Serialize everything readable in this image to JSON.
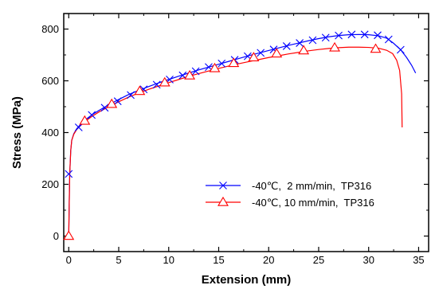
{
  "chart_data": {
    "type": "line",
    "xlabel": "Extension (mm)",
    "ylabel": "Stress (MPa)",
    "xlim": [
      -0.5,
      36
    ],
    "ylim": [
      -60,
      860
    ],
    "xticks": [
      0,
      5,
      10,
      15,
      20,
      25,
      30,
      35
    ],
    "yticks": [
      0,
      200,
      400,
      600,
      800
    ],
    "grid": false,
    "legend_position": "lower-right",
    "series": [
      {
        "name": "-40℃,  2 mm/min,  TP316",
        "color": "#0000ff",
        "marker": "x",
        "x": [
          0,
          0.05,
          0.1,
          0.2,
          0.3,
          0.5,
          0.8,
          1.2,
          1.7,
          2.3,
          3.0,
          4.0,
          5.0,
          6.0,
          7.0,
          8.0,
          9.0,
          10.0,
          11.0,
          12.0,
          13.0,
          14.0,
          15.0,
          16.0,
          17.0,
          18.0,
          19.0,
          20.0,
          21.0,
          22.0,
          23.0,
          24.0,
          25.0,
          26.0,
          27.0,
          28.0,
          29.0,
          30.0,
          31.0,
          31.8,
          32.5,
          33.2,
          33.8,
          34.3,
          34.7
        ],
        "y": [
          0,
          130,
          240,
          330,
          370,
          395,
          415,
          432,
          450,
          468,
          485,
          507,
          528,
          547,
          563,
          578,
          592,
          605,
          618,
          630,
          642,
          653,
          664,
          675,
          686,
          697,
          707,
          717,
          727,
          737,
          746,
          755,
          763,
          770,
          775,
          778,
          779,
          778,
          774,
          765,
          745,
          720,
          690,
          660,
          630
        ],
        "markers_x": [
          0,
          1.0,
          2.3,
          3.6,
          4.9,
          6.2,
          7.5,
          8.8,
          10.1,
          11.4,
          12.7,
          14.0,
          15.3,
          16.6,
          17.9,
          19.2,
          20.5,
          21.8,
          23.1,
          24.4,
          25.7,
          27.0,
          28.3,
          29.6,
          30.9,
          32.0,
          33.2
        ],
        "markers_y": [
          240,
          420,
          468,
          496,
          521,
          545,
          567,
          585,
          605,
          621,
          637,
          653,
          667,
          681,
          695,
          708,
          721,
          734,
          746,
          757,
          767,
          775,
          779,
          779,
          776,
          760,
          720
        ]
      },
      {
        "name": "-40℃, 10 mm/min,  TP316",
        "color": "#ff0000",
        "marker": "triangle",
        "x": [
          0,
          0.05,
          0.1,
          0.2,
          0.3,
          0.5,
          0.8,
          1.2,
          1.7,
          2.3,
          3.0,
          4.0,
          5.0,
          6.0,
          7.0,
          8.0,
          9.0,
          10.0,
          11.0,
          12.0,
          13.0,
          14.0,
          15.0,
          16.0,
          17.0,
          18.0,
          19.0,
          20.0,
          21.0,
          22.0,
          23.0,
          24.0,
          25.0,
          26.0,
          27.0,
          28.0,
          29.0,
          30.0,
          31.0,
          31.8,
          32.4,
          32.8,
          33.1,
          33.3,
          33.35
        ],
        "y": [
          0,
          130,
          240,
          330,
          370,
          393,
          412,
          428,
          445,
          462,
          479,
          500,
          519,
          537,
          553,
          567,
          580,
          593,
          605,
          617,
          628,
          638,
          648,
          657,
          666,
          674,
          682,
          690,
          697,
          704,
          710,
          716,
          721,
          725,
          728,
          730,
          730,
          729,
          726,
          718,
          705,
          680,
          640,
          550,
          420
        ],
        "markers_x": [
          0,
          1.6,
          4.3,
          7.1,
          9.6,
          12.1,
          14.6,
          16.5,
          18.5,
          20.8,
          23.5,
          26.6,
          30.7
        ],
        "markers_y": [
          0,
          445,
          510,
          560,
          593,
          620,
          648,
          668,
          690,
          705,
          717,
          728,
          723
        ]
      }
    ]
  }
}
